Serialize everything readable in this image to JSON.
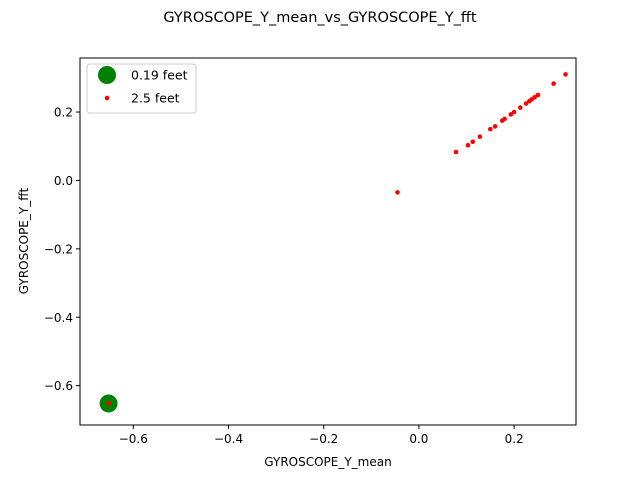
{
  "chart_data": {
    "type": "scatter",
    "title": "GYROSCOPE_Y_mean_vs_GYROSCOPE_Y_fft",
    "xlabel": "GYROSCOPE_Y_mean",
    "ylabel": "GYROSCOPE_Y_fft",
    "xlim": [
      -0.712,
      0.33
    ],
    "ylim": [
      -0.715,
      0.358
    ],
    "xticks": [
      -0.6,
      -0.4,
      -0.2,
      0.0,
      0.2
    ],
    "xtick_labels": [
      "−0.6",
      "−0.4",
      "−0.2",
      "0.0",
      "0.2"
    ],
    "yticks": [
      -0.6,
      -0.4,
      -0.2,
      0.0,
      0.2
    ],
    "ytick_labels": [
      "−0.6",
      "−0.4",
      "−0.2",
      "0.0",
      "0.2"
    ],
    "grid": false,
    "legend_position": "top-left",
    "series": [
      {
        "name": "0.19 feet",
        "color": "#008000",
        "marker": "large-circle",
        "points": [
          [
            -0.652,
            -0.652
          ]
        ]
      },
      {
        "name": "2.5 feet",
        "color": "#ff0000",
        "marker": "small-dot",
        "points": [
          [
            -0.652,
            -0.652
          ],
          [
            -0.045,
            -0.035
          ],
          [
            0.078,
            0.083
          ],
          [
            0.103,
            0.103
          ],
          [
            0.113,
            0.113
          ],
          [
            0.128,
            0.128
          ],
          [
            0.15,
            0.15
          ],
          [
            0.16,
            0.158
          ],
          [
            0.175,
            0.175
          ],
          [
            0.18,
            0.18
          ],
          [
            0.193,
            0.193
          ],
          [
            0.2,
            0.2
          ],
          [
            0.213,
            0.213
          ],
          [
            0.225,
            0.225
          ],
          [
            0.232,
            0.232
          ],
          [
            0.237,
            0.237
          ],
          [
            0.243,
            0.243
          ],
          [
            0.25,
            0.25
          ],
          [
            0.283,
            0.283
          ],
          [
            0.308,
            0.31
          ]
        ]
      }
    ]
  }
}
